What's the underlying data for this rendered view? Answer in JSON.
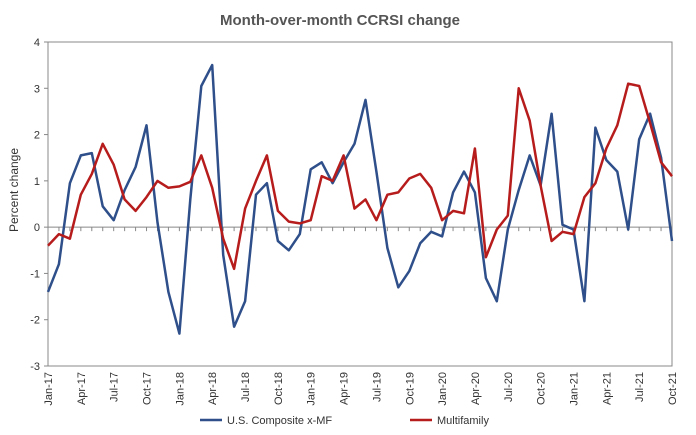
{
  "chart_data": {
    "type": "line",
    "title": "Month-over-month  CCRSI change",
    "ylabel": "Percent change",
    "ylim": [
      -3,
      4
    ],
    "yticks": [
      -3,
      -2,
      -1,
      0,
      1,
      2,
      3,
      4
    ],
    "grid": false,
    "legend_position": "bottom",
    "tick_labels": [
      "Jan-17",
      "Apr-17",
      "Jul-17",
      "Oct-17",
      "Jan-18",
      "Apr-18",
      "Jul-18",
      "Oct-18",
      "Jan-19",
      "Apr-19",
      "Jul-19",
      "Oct-19",
      "Jan-20",
      "Apr-20",
      "Jul-20",
      "Oct-20",
      "Jan-21",
      "Apr-21",
      "Jul-21",
      "Oct-21"
    ],
    "series": [
      {
        "name": "U.S. Composite x-MF",
        "color": "#2e4f8a",
        "values": [
          -1.4,
          -0.8,
          0.95,
          1.55,
          1.6,
          0.45,
          0.15,
          0.8,
          1.3,
          2.2,
          0.1,
          -1.4,
          -2.3,
          0.6,
          3.05,
          3.5,
          -0.6,
          -2.15,
          -1.6,
          0.7,
          0.95,
          -0.3,
          -0.5,
          -0.15,
          1.25,
          1.4,
          0.95,
          1.4,
          1.8,
          2.75,
          1.2,
          -0.45,
          -1.3,
          -0.95,
          -0.35,
          -0.1,
          -0.2,
          0.75,
          1.2,
          0.75,
          -1.1,
          -1.6,
          -0.05,
          0.8,
          1.55,
          0.9,
          2.45,
          0.05,
          -0.05,
          -1.6,
          2.15,
          1.45,
          1.2,
          -0.05,
          1.9,
          2.45,
          1.5,
          -0.3
        ]
      },
      {
        "name": "Multifamily",
        "color": "#b71c1c",
        "values": [
          -0.4,
          -0.15,
          -0.25,
          0.7,
          1.15,
          1.8,
          1.35,
          0.6,
          0.35,
          0.65,
          1.0,
          0.85,
          0.88,
          0.98,
          1.55,
          0.85,
          -0.25,
          -0.9,
          0.4,
          1.0,
          1.55,
          0.35,
          0.12,
          0.08,
          0.15,
          1.1,
          1.0,
          1.55,
          0.4,
          0.6,
          0.15,
          0.7,
          0.75,
          1.05,
          1.15,
          0.85,
          0.15,
          0.35,
          0.3,
          1.7,
          -0.65,
          -0.05,
          0.25,
          3.0,
          2.3,
          0.9,
          -0.3,
          -0.1,
          -0.15,
          0.65,
          0.95,
          1.7,
          2.2,
          3.1,
          3.05,
          2.25,
          1.4,
          1.1
        ]
      }
    ]
  }
}
